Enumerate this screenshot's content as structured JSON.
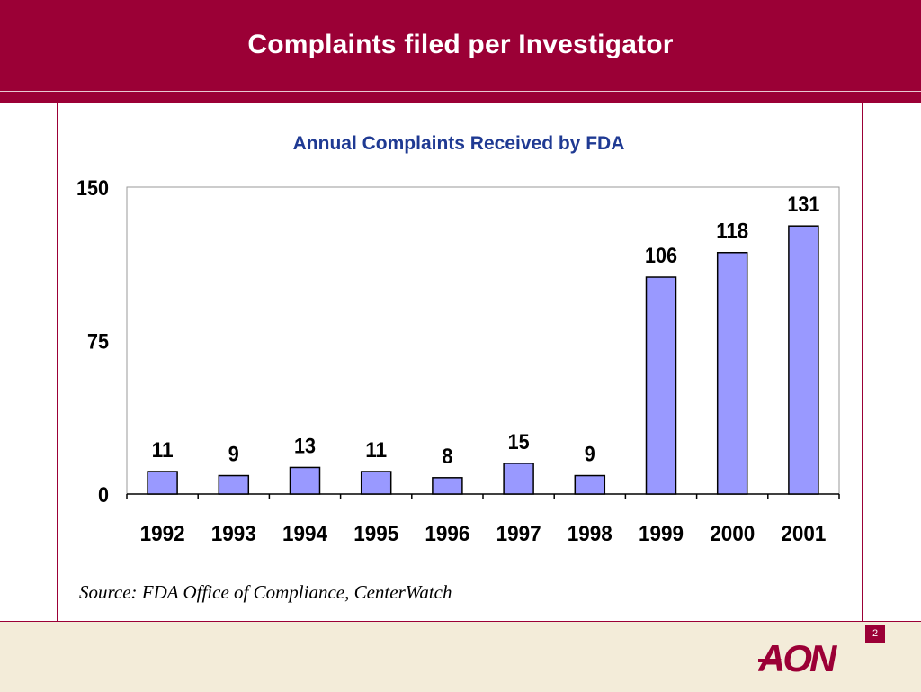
{
  "slide": {
    "title": "Complaints filed per Investigator",
    "source": "Source: FDA Office of Compliance, CenterWatch",
    "page_number": "2",
    "logo_text": "AON"
  },
  "colors": {
    "brand": "#9b0036",
    "bar_fill": "#9999ff",
    "chart_title": "#1f3a93",
    "footer_bg": "#f3ecd9"
  },
  "chart_data": {
    "type": "bar",
    "title": "Annual Complaints Received by FDA",
    "categories": [
      "1992",
      "1993",
      "1994",
      "1995",
      "1996",
      "1997",
      "1998",
      "1999",
      "2000",
      "2001"
    ],
    "series": [
      {
        "values": [
          11,
          9,
          13,
          11,
          8,
          15,
          9,
          106,
          118,
          131
        ]
      }
    ],
    "ylim": [
      0,
      150
    ],
    "yticks": [
      0,
      75,
      150
    ],
    "grid": false,
    "legend": "none"
  }
}
